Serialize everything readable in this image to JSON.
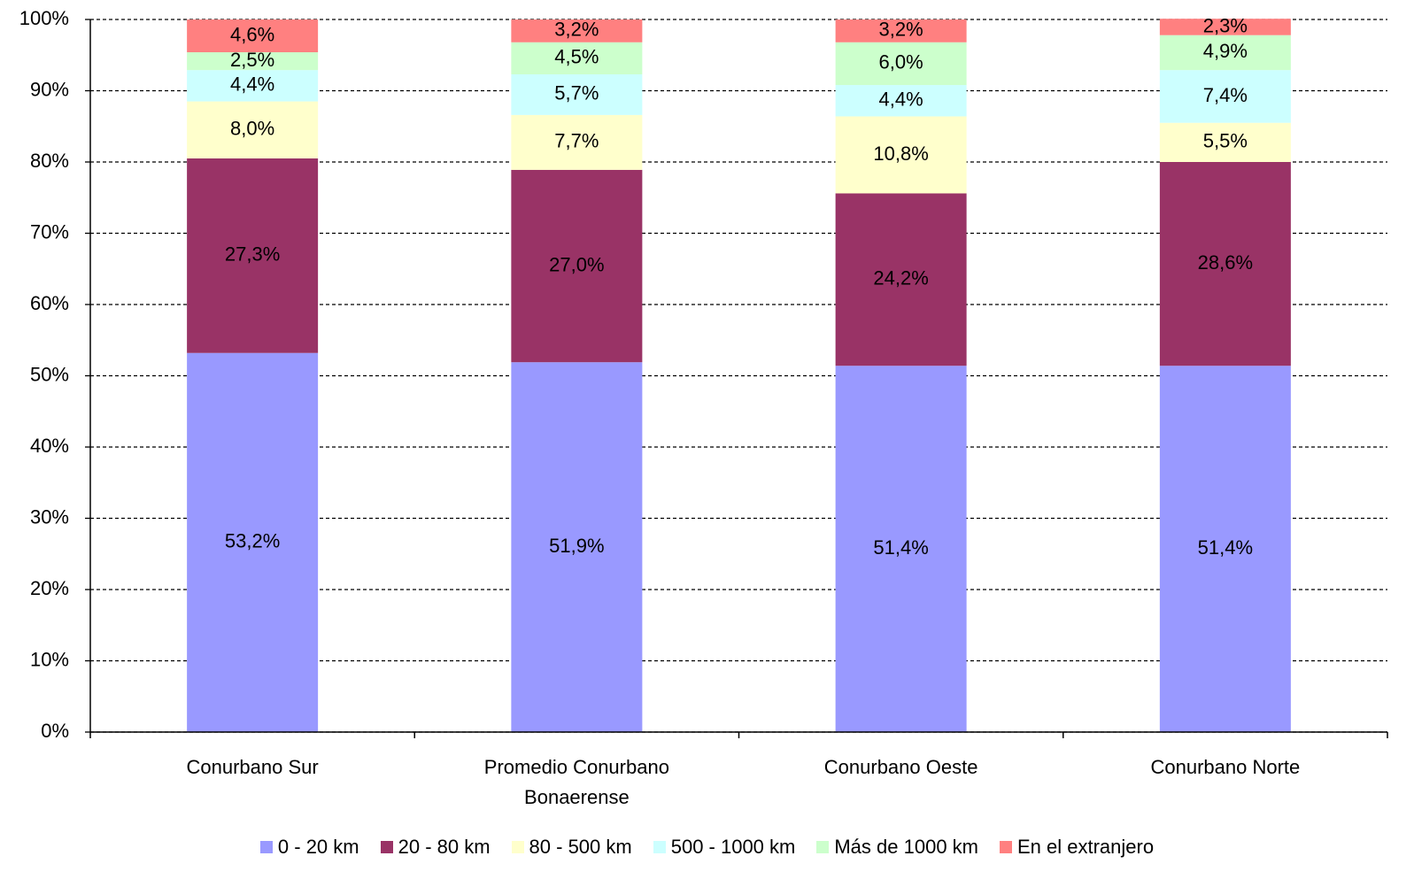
{
  "chart_data": {
    "type": "stacked_bar",
    "categories": [
      "Conurbano Sur",
      "Promedio Conurbano Bonaerense",
      "Conurbano Oeste",
      "Conurbano Norte"
    ],
    "series": [
      {
        "name": "0 - 20 km",
        "color": "#9999ff",
        "values": [
          53.2,
          51.9,
          51.4,
          51.4
        ],
        "value_labels": [
          "53,2%",
          "51,9%",
          "51,4%",
          "51,4%"
        ]
      },
      {
        "name": "20 - 80 km",
        "color": "#993366",
        "values": [
          27.3,
          27.0,
          24.2,
          28.6
        ],
        "value_labels": [
          "27,3%",
          "27,0%",
          "24,2%",
          "28,6%"
        ]
      },
      {
        "name": "80 - 500 km",
        "color": "#ffffcc",
        "values": [
          8.0,
          7.7,
          10.8,
          5.5
        ],
        "value_labels": [
          "8,0%",
          "7,7%",
          "10,8%",
          "5,5%"
        ]
      },
      {
        "name": "500 - 1000 km",
        "color": "#ccffff",
        "values": [
          4.4,
          5.7,
          4.4,
          7.4
        ],
        "value_labels": [
          "4,4%",
          "5,7%",
          "4,4%",
          "7,4%"
        ]
      },
      {
        "name": "Más de 1000 km",
        "color": "#ccffcc",
        "values": [
          2.5,
          4.5,
          6.0,
          4.9
        ],
        "value_labels": [
          "2,5%",
          "4,5%",
          "6,0%",
          "4,9%"
        ]
      },
      {
        "name": "En el extranjero",
        "color": "#ff8080",
        "values": [
          4.6,
          3.2,
          3.2,
          2.3
        ],
        "value_labels": [
          "4,6%",
          "3,2%",
          "3,2%",
          "2,3%"
        ]
      }
    ],
    "ylim": [
      0,
      100
    ],
    "yticks": [
      {
        "value": 0,
        "label": "0%"
      },
      {
        "value": 10,
        "label": "10%"
      },
      {
        "value": 20,
        "label": "20%"
      },
      {
        "value": 30,
        "label": "30%"
      },
      {
        "value": 40,
        "label": "40%"
      },
      {
        "value": 50,
        "label": "50%"
      },
      {
        "value": 60,
        "label": "60%"
      },
      {
        "value": 70,
        "label": "70%"
      },
      {
        "value": 80,
        "label": "80%"
      },
      {
        "value": 90,
        "label": "90%"
      },
      {
        "value": 100,
        "label": "100%"
      }
    ],
    "grid": true,
    "legend": "bottom"
  }
}
